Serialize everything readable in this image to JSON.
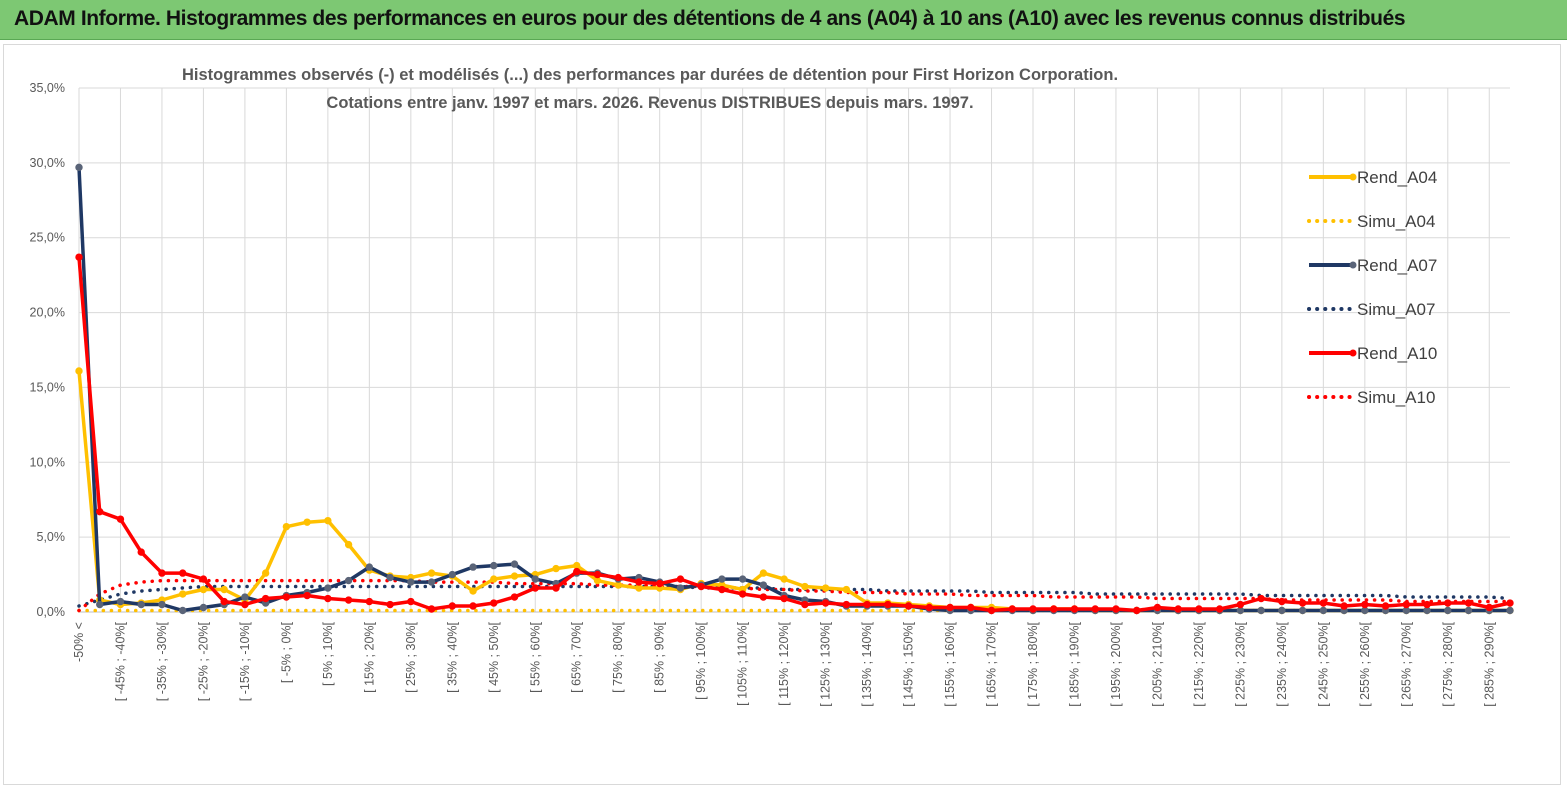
{
  "banner": {
    "title": "ADAM Informe. Histogrammes des performances en euros pour des détentions de 4 ans (A04) à 10 ans (A10) avec les revenus connus distribués"
  },
  "colors": {
    "banner_bg": "#7dc873",
    "A04": "#ffc000",
    "A07": "#1f3864",
    "A10": "#ff0000",
    "A07_marker": "#5a6478"
  },
  "chart_data": {
    "type": "line",
    "title_line1": "Histogrammes observés (-)  et modélisés (...) des performances par durées de détention pour First Horizon Corporation.",
    "title_line2": "Cotations entre janv. 1997 et mars. 2026.  Revenus DISTRIBUES depuis mars. 1997.",
    "ylim": [
      0,
      35
    ],
    "yticks": [
      "0,0%",
      "5,0%",
      "10,0%",
      "15,0%",
      "20,0%",
      "25,0%",
      "30,0%",
      "35,0%"
    ],
    "ytick_values": [
      0,
      5,
      10,
      15,
      20,
      25,
      30,
      35
    ],
    "xtick_labels": [
      "-50% <",
      "[ -45% ; -40%[",
      "[ -35% ; -30%[",
      "[ -25% ; -20%[",
      "[ -15% ; -10%[",
      "[ -5% ; 0%[",
      "[ 5% ; 10%[",
      "[ 15% ; 20%[",
      "[ 25% ; 30%[",
      "[ 35% ; 40%[",
      "[ 45% ; 50%[",
      "[ 55% ; 60%[",
      "[ 65% ; 70%[",
      "[ 75% ; 80%[",
      "[ 85% ; 90%[",
      "[ 95% ; 100%[",
      "[ 105% ; 110%[",
      "[ 115% ; 120%[",
      "[ 125% ; 130%[",
      "[ 135% ; 140%[",
      "[ 145% ; 150%[",
      "[ 155% ; 160%[",
      "[ 165% ; 170%[",
      "[ 175% ; 180%[",
      "[ 185% ; 190%[",
      "[ 195% ; 200%[",
      "[ 205% ; 210%[",
      "[ 215% ; 220%[",
      "[ 225% ; 230%[",
      "[ 235% ; 240%[",
      "[ 245% ; 250%[",
      "[ 255% ; 260%[",
      "[ 265% ; 270%[",
      "[ 275% ; 280%[",
      "[ 285% ; 290%["
    ],
    "xtick_step": 2,
    "n_categories": 70,
    "legend": [
      "Rend_A04",
      "Simu_A04",
      "Rend_A07",
      "Simu_A07",
      "Rend_A10",
      "Simu_A10"
    ],
    "series": [
      {
        "name": "Rend_A04",
        "style": "solid",
        "color_key": "A04",
        "values": [
          16.1,
          0.8,
          0.5,
          0.6,
          0.8,
          1.2,
          1.5,
          1.5,
          0.8,
          2.6,
          5.7,
          6.0,
          6.1,
          4.5,
          2.8,
          2.4,
          2.3,
          2.6,
          2.4,
          1.4,
          2.2,
          2.4,
          2.5,
          2.9,
          3.1,
          2.1,
          1.8,
          1.6,
          1.6,
          1.5,
          1.9,
          1.8,
          1.5,
          2.6,
          2.2,
          1.7,
          1.6,
          1.5,
          0.6,
          0.6,
          0.5,
          0.4,
          0.3,
          0.3,
          0.3,
          0.2,
          0.1,
          0.2,
          0.2,
          0.1,
          0.1,
          0.1,
          0.1,
          0.1,
          0.1,
          0.1,
          0.1,
          0.1,
          0.1,
          0.1,
          0.1,
          0.1,
          0.1,
          0.1,
          0.1,
          0.1,
          0.1,
          0.1,
          0.1,
          0.1
        ]
      },
      {
        "name": "Simu_A04",
        "style": "dotted",
        "color_key": "A04",
        "values": [
          0.1,
          0.1,
          0.1,
          0.1,
          0.1,
          0.1,
          0.1,
          0.1,
          0.1,
          0.1,
          0.1,
          0.1,
          0.1,
          0.1,
          0.1,
          0.1,
          0.1,
          0.1,
          0.1,
          0.1,
          0.1,
          0.1,
          0.1,
          0.1,
          0.1,
          0.1,
          0.1,
          0.1,
          0.1,
          0.1,
          0.1,
          0.1,
          0.1,
          0.1,
          0.1,
          0.1,
          0.1,
          0.1,
          0.1,
          0.1,
          0.1,
          0.1,
          0.1,
          0.1,
          0.1,
          0.1,
          0.1,
          0.1,
          0.1,
          0.1,
          0.1,
          0.1,
          0.1,
          0.1,
          0.1,
          0.1,
          0.1,
          0.1,
          0.1,
          0.1,
          0.1,
          0.1,
          0.1,
          0.1,
          0.1,
          0.1,
          0.1,
          0.1,
          0.1,
          0.1
        ]
      },
      {
        "name": "Rend_A07",
        "style": "solid",
        "color_key": "A07",
        "values": [
          29.7,
          0.5,
          0.7,
          0.5,
          0.5,
          0.1,
          0.3,
          0.5,
          1.0,
          0.6,
          1.1,
          1.3,
          1.6,
          2.1,
          3.0,
          2.3,
          2.0,
          2.0,
          2.5,
          3.0,
          3.1,
          3.2,
          2.2,
          1.9,
          2.6,
          2.6,
          2.2,
          2.3,
          2.0,
          1.6,
          1.8,
          2.2,
          2.2,
          1.8,
          1.1,
          0.8,
          0.7,
          0.4,
          0.4,
          0.4,
          0.4,
          0.2,
          0.1,
          0.1,
          0.1,
          0.1,
          0.1,
          0.1,
          0.1,
          0.1,
          0.1,
          0.1,
          0.1,
          0.1,
          0.1,
          0.1,
          0.1,
          0.1,
          0.1,
          0.1,
          0.1,
          0.1,
          0.1,
          0.1,
          0.1,
          0.1,
          0.1,
          0.1,
          0.1,
          0.1
        ]
      },
      {
        "name": "Simu_A07",
        "style": "dotted",
        "color_key": "A07",
        "values": [
          0.4,
          0.8,
          1.2,
          1.4,
          1.5,
          1.6,
          1.7,
          1.7,
          1.7,
          1.7,
          1.7,
          1.7,
          1.7,
          1.7,
          1.7,
          1.7,
          1.7,
          1.7,
          1.7,
          1.7,
          1.7,
          1.7,
          1.7,
          1.7,
          1.7,
          1.7,
          1.7,
          1.7,
          1.7,
          1.7,
          1.6,
          1.6,
          1.6,
          1.6,
          1.5,
          1.5,
          1.5,
          1.5,
          1.5,
          1.4,
          1.4,
          1.4,
          1.4,
          1.4,
          1.3,
          1.3,
          1.3,
          1.3,
          1.3,
          1.2,
          1.2,
          1.2,
          1.2,
          1.2,
          1.2,
          1.2,
          1.2,
          1.1,
          1.1,
          1.1,
          1.1,
          1.1,
          1.1,
          1.1,
          1.0,
          1.0,
          1.0,
          1.0,
          1.0,
          0.9
        ]
      },
      {
        "name": "Rend_A10",
        "style": "solid",
        "color_key": "A10",
        "values": [
          23.7,
          6.7,
          6.2,
          4.0,
          2.6,
          2.6,
          2.2,
          0.7,
          0.5,
          0.9,
          1.0,
          1.1,
          0.9,
          0.8,
          0.7,
          0.5,
          0.7,
          0.2,
          0.4,
          0.4,
          0.6,
          1.0,
          1.6,
          1.6,
          2.7,
          2.5,
          2.3,
          2.0,
          1.9,
          2.2,
          1.7,
          1.5,
          1.2,
          1.0,
          0.9,
          0.5,
          0.6,
          0.5,
          0.5,
          0.5,
          0.4,
          0.3,
          0.3,
          0.3,
          0.1,
          0.2,
          0.2,
          0.2,
          0.2,
          0.2,
          0.2,
          0.1,
          0.3,
          0.2,
          0.2,
          0.2,
          0.5,
          0.9,
          0.7,
          0.6,
          0.6,
          0.4,
          0.5,
          0.4,
          0.5,
          0.5,
          0.6,
          0.6,
          0.3,
          0.6
        ]
      },
      {
        "name": "Simu_A10",
        "style": "dotted",
        "color_key": "A10",
        "values": [
          0.1,
          1.2,
          1.8,
          2.0,
          2.1,
          2.1,
          2.1,
          2.1,
          2.1,
          2.1,
          2.1,
          2.1,
          2.1,
          2.1,
          2.1,
          2.1,
          2.1,
          2.0,
          2.0,
          2.0,
          2.0,
          1.9,
          1.9,
          1.9,
          1.9,
          1.8,
          1.8,
          1.8,
          1.7,
          1.7,
          1.7,
          1.6,
          1.6,
          1.5,
          1.5,
          1.4,
          1.4,
          1.3,
          1.3,
          1.3,
          1.2,
          1.2,
          1.2,
          1.1,
          1.1,
          1.1,
          1.1,
          1.0,
          1.0,
          1.0,
          1.0,
          1.0,
          0.9,
          0.9,
          0.9,
          0.9,
          0.9,
          0.9,
          0.8,
          0.8,
          0.8,
          0.8,
          0.8,
          0.8,
          0.7,
          0.7,
          0.7,
          0.7,
          0.7,
          0.7
        ]
      }
    ]
  }
}
